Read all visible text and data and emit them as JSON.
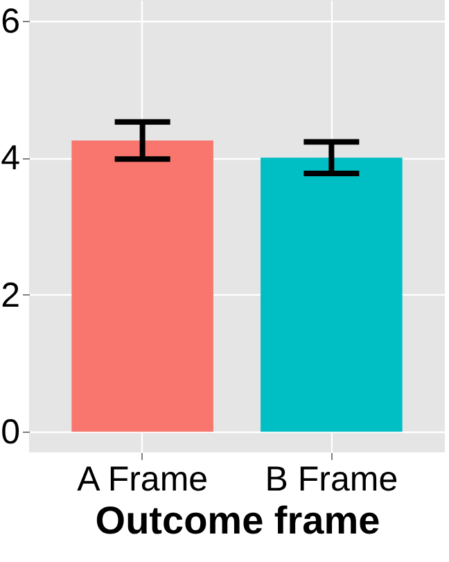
{
  "chart_data": {
    "type": "bar",
    "xlabel": "Outcome frame",
    "categories": [
      "A Frame",
      "B Frame"
    ],
    "values": [
      4.25,
      4.0
    ],
    "colors": [
      "#f8766d",
      "#00bfc4"
    ],
    "errors": [
      [
        3.98,
        4.52
      ],
      [
        3.77,
        4.23
      ]
    ],
    "ylim": [
      -0.3,
      6.3
    ],
    "yticks": [
      0,
      2,
      4,
      6
    ],
    "grid": true
  }
}
